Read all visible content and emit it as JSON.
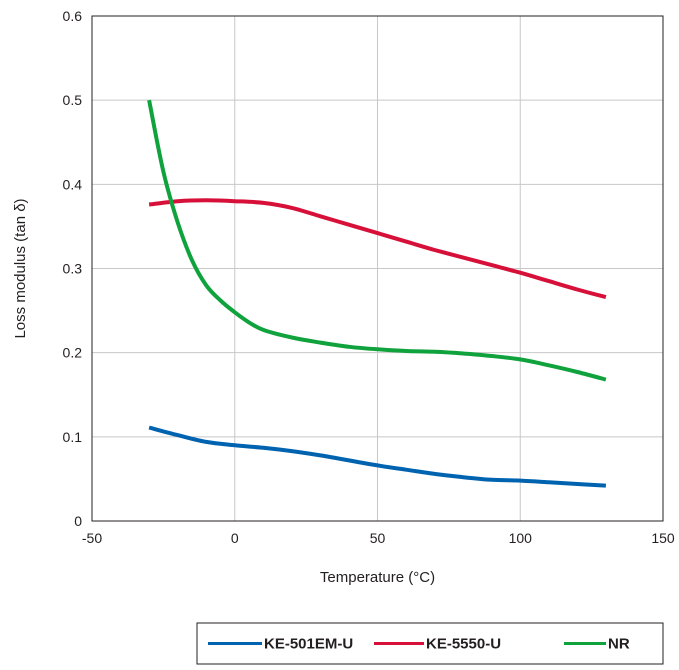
{
  "chart_data": {
    "type": "line",
    "xlabel": "Temperature (°C)",
    "ylabel": "Loss modulus (tan δ)",
    "xlim": [
      -50,
      150
    ],
    "ylim": [
      0,
      0.6
    ],
    "x_ticks": [
      -50,
      0,
      50,
      100,
      150
    ],
    "x_tick_labels": [
      "-50",
      "0",
      "50",
      "100",
      "150"
    ],
    "y_ticks": [
      0,
      0.1,
      0.2,
      0.3,
      0.4,
      0.5,
      0.6
    ],
    "y_tick_labels": [
      "0",
      "0.1",
      "0.2",
      "0.3",
      "0.4",
      "0.5",
      "0.6"
    ],
    "grid": true,
    "legend_position": "bottom-right",
    "series": [
      {
        "name": "KE-501EM-U",
        "color": "#0063b0",
        "x": [
          -30,
          -20,
          -10,
          0,
          10,
          20,
          30,
          40,
          50,
          60,
          70,
          80,
          90,
          100,
          110,
          120,
          130
        ],
        "y": [
          0.111,
          0.102,
          0.094,
          0.09,
          0.087,
          0.083,
          0.078,
          0.072,
          0.066,
          0.061,
          0.056,
          0.052,
          0.049,
          0.048,
          0.046,
          0.044,
          0.042
        ]
      },
      {
        "name": "KE-5550-U",
        "color": "#d7103a",
        "x": [
          -30,
          -20,
          -10,
          0,
          10,
          20,
          30,
          40,
          50,
          60,
          70,
          80,
          90,
          100,
          110,
          120,
          130
        ],
        "y": [
          0.376,
          0.38,
          0.381,
          0.38,
          0.378,
          0.372,
          0.362,
          0.352,
          0.342,
          0.332,
          0.322,
          0.313,
          0.304,
          0.295,
          0.285,
          0.275,
          0.266
        ]
      },
      {
        "name": "NR",
        "color": "#10a23d",
        "x": [
          -30,
          -25,
          -20,
          -15,
          -10,
          -5,
          0,
          5,
          10,
          20,
          30,
          40,
          50,
          60,
          70,
          80,
          90,
          100,
          110,
          120,
          130
        ],
        "y": [
          0.5,
          0.415,
          0.355,
          0.31,
          0.28,
          0.262,
          0.248,
          0.236,
          0.227,
          0.218,
          0.212,
          0.207,
          0.204,
          0.202,
          0.201,
          0.199,
          0.196,
          0.192,
          0.185,
          0.177,
          0.168
        ]
      }
    ]
  }
}
